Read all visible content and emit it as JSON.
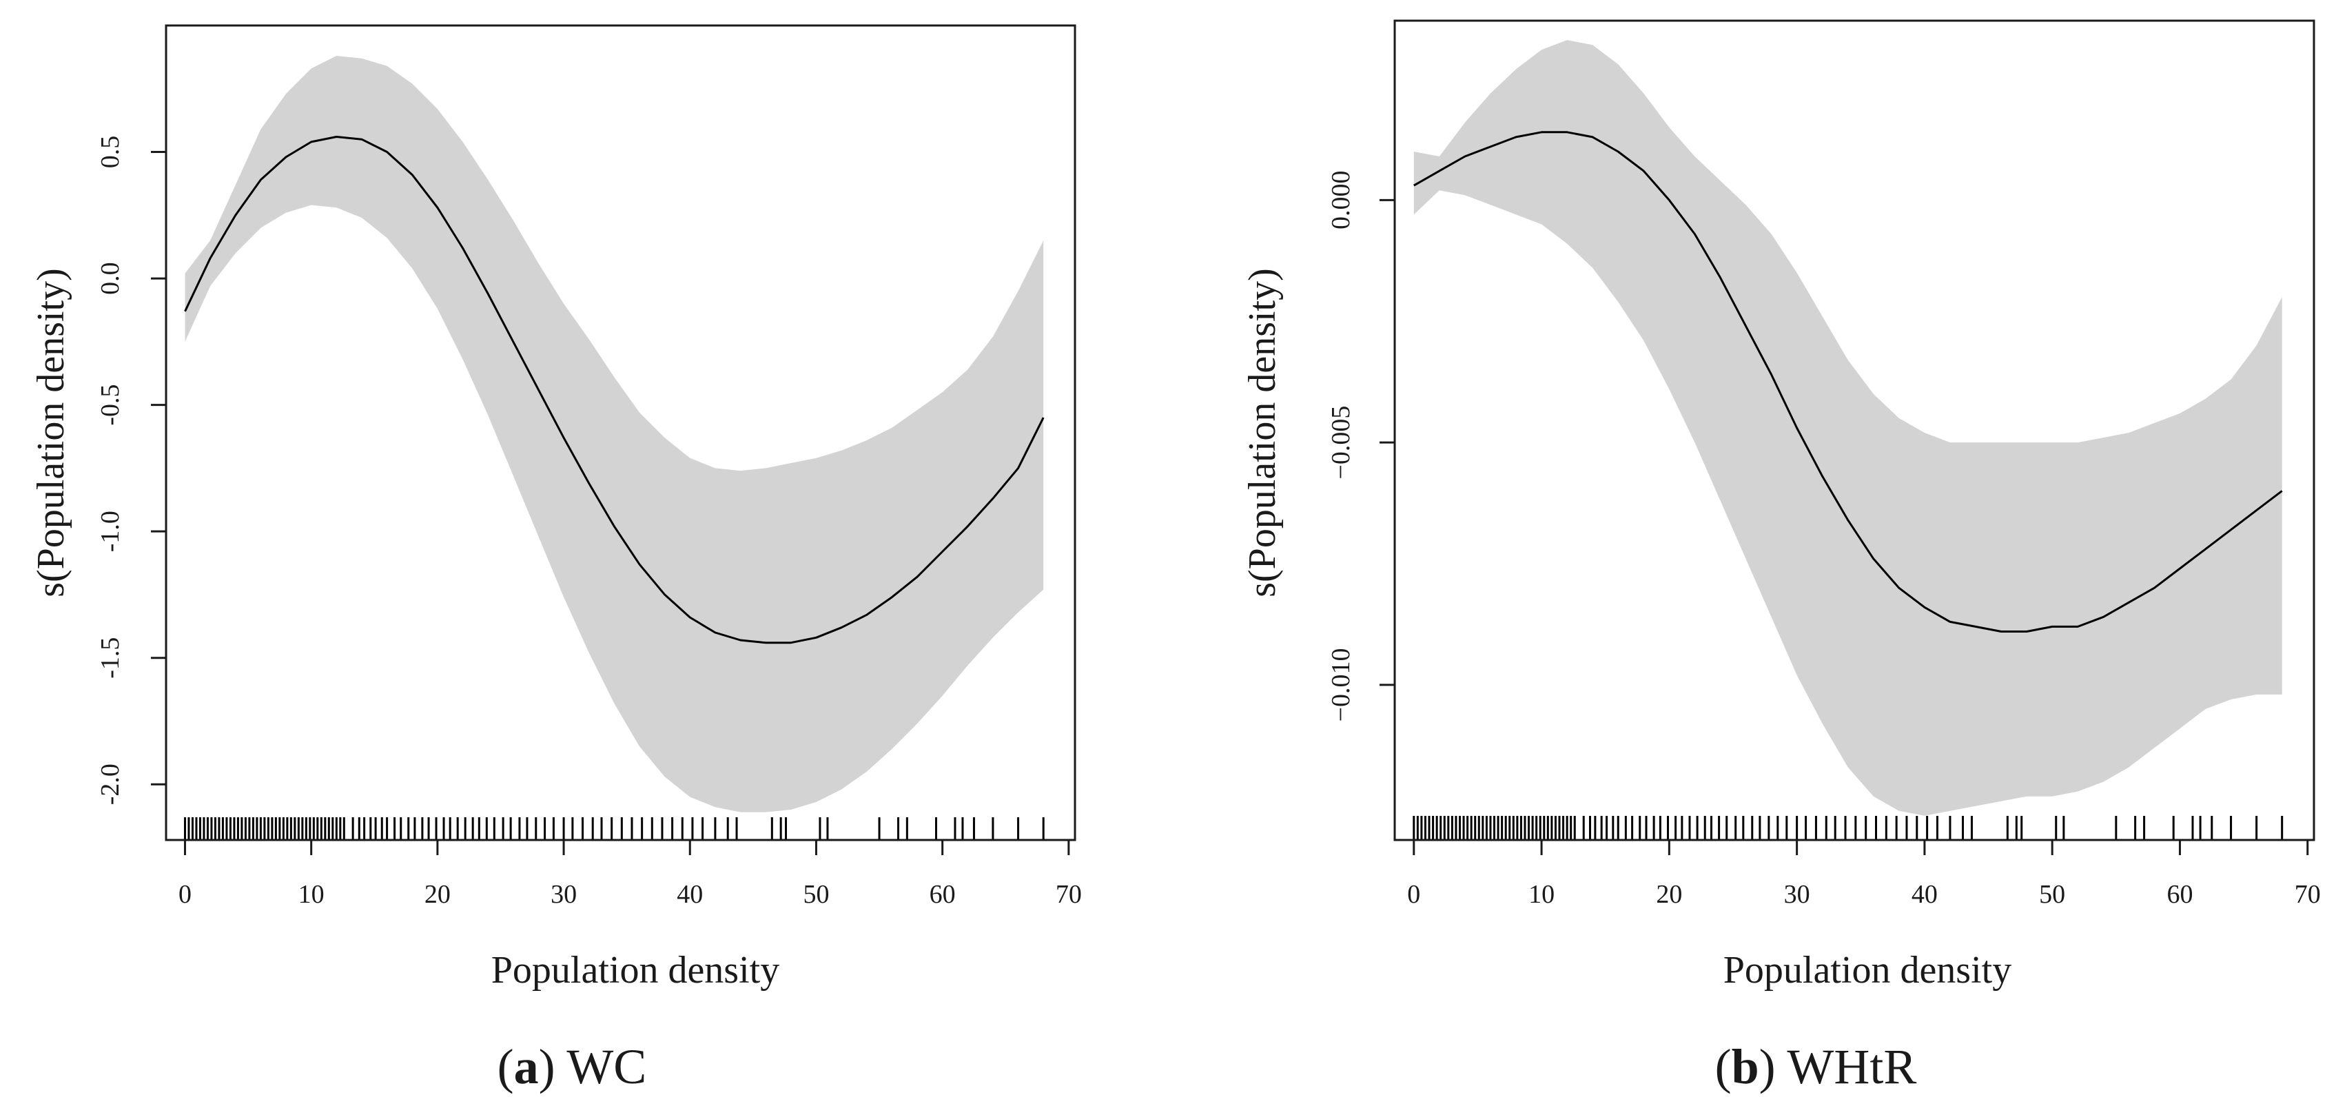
{
  "figure": {
    "band_color": "#d3d3d3",
    "line_color": "#000000"
  },
  "chart_data": [
    {
      "type": "line",
      "panel_label": "a",
      "caption_text": "WC",
      "xlabel": "Population density",
      "ylabel": "s(Population density)",
      "xlim": [
        -1.5,
        70.5
      ],
      "ylim": [
        -2.22,
        1.0
      ],
      "xticks": [
        0,
        10,
        20,
        30,
        40,
        50,
        60,
        70
      ],
      "xtick_labels": [
        "0",
        "10",
        "20",
        "30",
        "40",
        "50",
        "60",
        "70"
      ],
      "yticks": [
        0.5,
        0.0,
        -0.5,
        -1.0,
        -1.5,
        -2.0
      ],
      "ytick_labels": [
        "0.5",
        "0.0",
        "-0.5",
        "-1.0",
        "-1.5",
        "-2.0"
      ],
      "series": [
        {
          "name": "smooth",
          "x": [
            0,
            2,
            4,
            6,
            8,
            10,
            12,
            14,
            16,
            18,
            20,
            22,
            24,
            26,
            28,
            30,
            32,
            34,
            36,
            38,
            40,
            42,
            44,
            46,
            48,
            50,
            52,
            54,
            56,
            58,
            60,
            62,
            64,
            66,
            68
          ],
          "y": [
            -0.13,
            0.08,
            0.25,
            0.39,
            0.48,
            0.54,
            0.56,
            0.55,
            0.5,
            0.41,
            0.28,
            0.12,
            -0.06,
            -0.25,
            -0.44,
            -0.63,
            -0.81,
            -0.98,
            -1.13,
            -1.25,
            -1.34,
            -1.4,
            -1.43,
            -1.44,
            -1.44,
            -1.42,
            -1.38,
            -1.33,
            -1.26,
            -1.18,
            -1.08,
            -0.98,
            -0.87,
            -0.75,
            -0.55
          ],
          "lower": [
            -0.25,
            -0.03,
            0.1,
            0.2,
            0.26,
            0.29,
            0.28,
            0.24,
            0.16,
            0.04,
            -0.12,
            -0.32,
            -0.54,
            -0.78,
            -1.02,
            -1.26,
            -1.48,
            -1.68,
            -1.85,
            -1.97,
            -2.05,
            -2.09,
            -2.11,
            -2.11,
            -2.1,
            -2.07,
            -2.02,
            -1.95,
            -1.86,
            -1.76,
            -1.65,
            -1.53,
            -1.42,
            -1.32,
            -1.23
          ],
          "upper": [
            0.02,
            0.15,
            0.37,
            0.59,
            0.73,
            0.83,
            0.88,
            0.87,
            0.84,
            0.77,
            0.67,
            0.54,
            0.39,
            0.23,
            0.06,
            -0.1,
            -0.24,
            -0.39,
            -0.53,
            -0.63,
            -0.71,
            -0.75,
            -0.76,
            -0.75,
            -0.73,
            -0.71,
            -0.68,
            -0.64,
            -0.59,
            -0.52,
            -0.45,
            -0.36,
            -0.23,
            -0.05,
            0.15
          ]
        }
      ],
      "rug": [
        0.0,
        0.3,
        0.6,
        0.9,
        1.2,
        1.5,
        1.8,
        2.1,
        2.4,
        2.7,
        3.0,
        3.3,
        3.6,
        3.9,
        4.2,
        4.5,
        4.8,
        5.1,
        5.4,
        5.7,
        6.0,
        6.3,
        6.6,
        6.9,
        7.2,
        7.5,
        7.8,
        8.1,
        8.4,
        8.7,
        9.0,
        9.3,
        9.6,
        9.9,
        10.2,
        10.5,
        10.8,
        11.1,
        11.4,
        11.7,
        12.0,
        12.3,
        12.6,
        13.3,
        13.8,
        14.2,
        14.7,
        15.1,
        15.6,
        16.0,
        16.6,
        17.1,
        17.7,
        18.2,
        18.8,
        19.3,
        19.9,
        20.5,
        21.0,
        21.6,
        22.2,
        22.8,
        23.3,
        23.9,
        24.5,
        25.2,
        25.8,
        26.5,
        27.1,
        27.8,
        28.5,
        29.2,
        30.0,
        30.7,
        31.5,
        32.3,
        33.0,
        33.8,
        34.6,
        35.4,
        36.2,
        37.0,
        37.8,
        38.6,
        39.4,
        40.2,
        41.0,
        42.0,
        43.0,
        43.7,
        46.5,
        47.2,
        47.6,
        50.3,
        50.9,
        55.0,
        56.5,
        57.2,
        59.5,
        61.0,
        61.6,
        62.5,
        64.0,
        66.0,
        68.0
      ]
    },
    {
      "type": "line",
      "panel_label": "b",
      "caption_text": "WHtR",
      "xlabel": "Population density",
      "ylabel": "s(Population density)",
      "xlim": [
        -1.5,
        70.5
      ],
      "ylim": [
        -0.0132,
        0.0037
      ],
      "xticks": [
        0,
        10,
        20,
        30,
        40,
        50,
        60,
        70
      ],
      "xtick_labels": [
        "0",
        "10",
        "20",
        "30",
        "40",
        "50",
        "60",
        "70"
      ],
      "yticks": [
        0.0,
        -0.005,
        -0.01
      ],
      "ytick_labels": [
        "0.000",
        "−0.005",
        "−0.010"
      ],
      "series": [
        {
          "name": "smooth",
          "x": [
            0,
            2,
            4,
            6,
            8,
            10,
            12,
            14,
            16,
            18,
            20,
            22,
            24,
            26,
            28,
            30,
            32,
            34,
            36,
            38,
            40,
            42,
            44,
            46,
            48,
            50,
            52,
            54,
            56,
            58,
            60,
            62,
            64,
            66,
            68
          ],
          "y": [
            0.0003,
            0.0006,
            0.0009,
            0.0011,
            0.0013,
            0.0014,
            0.0014,
            0.0013,
            0.001,
            0.0006,
            0.0,
            -0.0007,
            -0.0016,
            -0.0026,
            -0.0036,
            -0.0047,
            -0.0057,
            -0.0066,
            -0.0074,
            -0.008,
            -0.0084,
            -0.0087,
            -0.0088,
            -0.0089,
            -0.0089,
            -0.0088,
            -0.0088,
            -0.0086,
            -0.0083,
            -0.008,
            -0.0076,
            -0.0072,
            -0.0068,
            -0.0064,
            -0.006
          ],
          "lower": [
            -0.0003,
            0.0002,
            0.0001,
            -0.0001,
            -0.0003,
            -0.0005,
            -0.0009,
            -0.0014,
            -0.0021,
            -0.0029,
            -0.0039,
            -0.005,
            -0.0062,
            -0.0074,
            -0.0086,
            -0.0098,
            -0.0108,
            -0.0117,
            -0.0123,
            -0.0126,
            -0.0127,
            -0.0126,
            -0.0125,
            -0.0124,
            -0.0123,
            -0.0123,
            -0.0122,
            -0.012,
            -0.0117,
            -0.0113,
            -0.0109,
            -0.0105,
            -0.0103,
            -0.0102,
            -0.0102
          ],
          "upper": [
            0.001,
            0.0009,
            0.0016,
            0.0022,
            0.0027,
            0.0031,
            0.0033,
            0.0032,
            0.0028,
            0.0022,
            0.0015,
            0.0009,
            0.0004,
            -0.0001,
            -0.0007,
            -0.0015,
            -0.0024,
            -0.0033,
            -0.004,
            -0.0045,
            -0.0048,
            -0.005,
            -0.005,
            -0.005,
            -0.005,
            -0.005,
            -0.005,
            -0.0049,
            -0.0048,
            -0.0046,
            -0.0044,
            -0.0041,
            -0.0037,
            -0.003,
            -0.002
          ]
        }
      ],
      "rug": [
        0.0,
        0.3,
        0.6,
        0.9,
        1.2,
        1.5,
        1.8,
        2.1,
        2.4,
        2.7,
        3.0,
        3.3,
        3.6,
        3.9,
        4.2,
        4.5,
        4.8,
        5.1,
        5.4,
        5.7,
        6.0,
        6.3,
        6.6,
        6.9,
        7.2,
        7.5,
        7.8,
        8.1,
        8.4,
        8.7,
        9.0,
        9.3,
        9.6,
        9.9,
        10.2,
        10.5,
        10.8,
        11.1,
        11.4,
        11.7,
        12.0,
        12.3,
        12.6,
        13.3,
        13.8,
        14.2,
        14.7,
        15.1,
        15.6,
        16.0,
        16.6,
        17.1,
        17.7,
        18.2,
        18.8,
        19.3,
        19.9,
        20.5,
        21.0,
        21.6,
        22.2,
        22.8,
        23.3,
        23.9,
        24.5,
        25.2,
        25.8,
        26.5,
        27.1,
        27.8,
        28.5,
        29.2,
        30.0,
        30.7,
        31.5,
        32.3,
        33.0,
        33.8,
        34.6,
        35.4,
        36.2,
        37.0,
        37.8,
        38.6,
        39.4,
        40.2,
        41.0,
        42.0,
        43.0,
        43.7,
        46.5,
        47.2,
        47.6,
        50.3,
        50.9,
        55.0,
        56.5,
        57.2,
        59.5,
        61.0,
        61.6,
        62.5,
        64.0,
        66.0,
        68.0
      ]
    }
  ]
}
